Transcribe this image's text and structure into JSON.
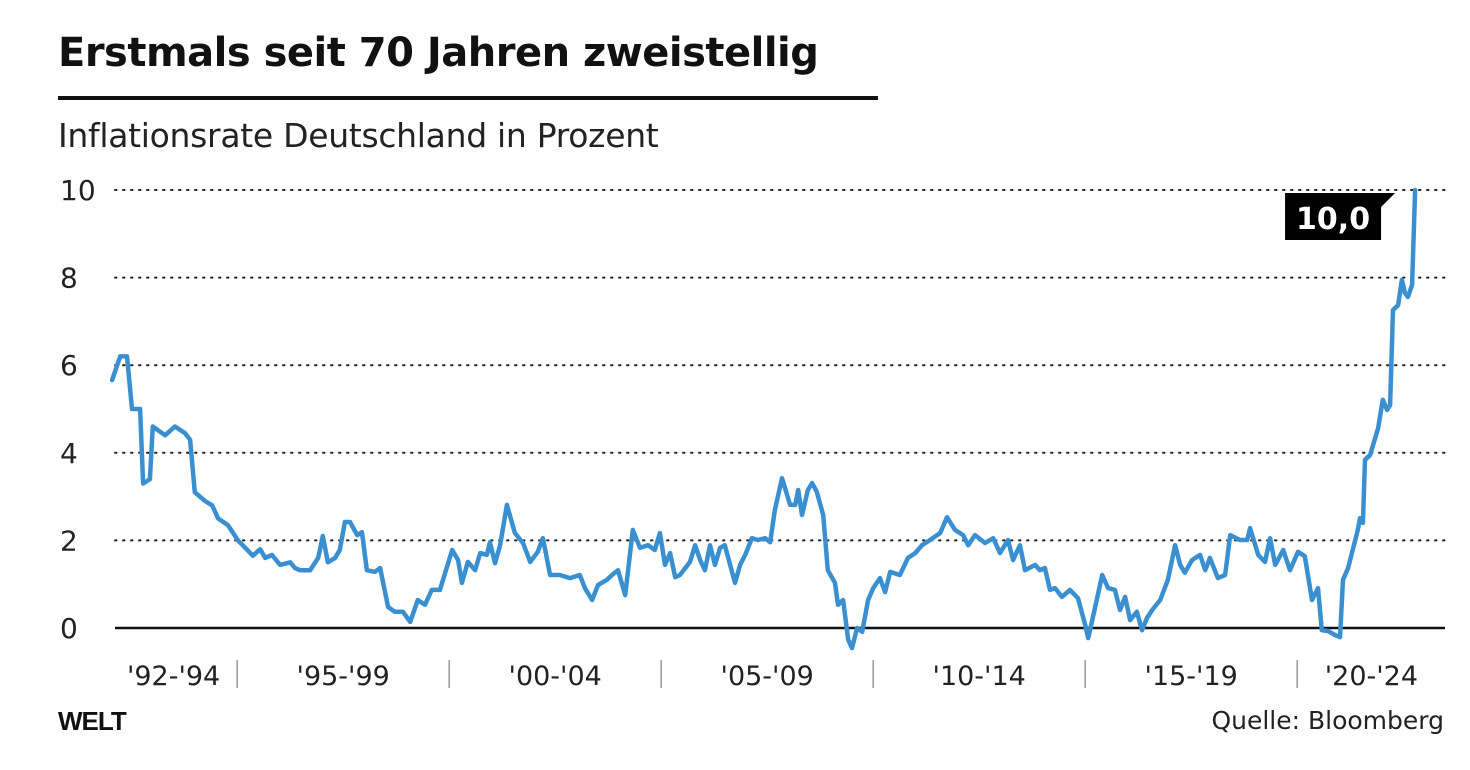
{
  "chart_data": {
    "type": "line",
    "title": "Erstmals seit 70 Jahren zweistellig",
    "subtitle": "Inflationsrate Deutschland in Prozent",
    "xlabel": "",
    "ylabel": "",
    "ylim": [
      0,
      10
    ],
    "xlim": [
      1992,
      2023.5
    ],
    "yticks": [
      "0",
      "2",
      "4",
      "6",
      "8",
      "10"
    ],
    "ytick_values": [
      0,
      2,
      4,
      6,
      8,
      10
    ],
    "grid": "horizontal dotted",
    "xticks": [
      {
        "label": "'92-'94",
        "from": 1992,
        "to": 1995
      },
      {
        "label": "'95-'99",
        "from": 1995,
        "to": 2000
      },
      {
        "label": "'00-'04",
        "from": 2000,
        "to": 2005
      },
      {
        "label": "'05-'09",
        "from": 2005,
        "to": 2010
      },
      {
        "label": "'10-'14",
        "from": 2010,
        "to": 2015
      },
      {
        "label": "'15-'19",
        "from": 2015,
        "to": 2020
      },
      {
        "label": "'20-'24",
        "from": 2020,
        "to": 2023.5
      }
    ],
    "line_color": "#3a8fd0",
    "annotation": {
      "label": "10,0",
      "x": 2022.78,
      "y": 10.0
    },
    "source": "Quelle: Bloomberg",
    "logo": "WELT",
    "series": [
      {
        "points": [
          [
            1992.05,
            5.66
          ],
          [
            1992.24,
            6.2
          ],
          [
            1992.4,
            6.2
          ],
          [
            1992.52,
            5.0
          ],
          [
            1992.71,
            5.0
          ],
          [
            1992.78,
            3.3
          ],
          [
            1992.94,
            3.4
          ],
          [
            1993.01,
            4.6
          ],
          [
            1993.3,
            4.4
          ],
          [
            1993.53,
            4.6
          ],
          [
            1993.77,
            4.45
          ],
          [
            1993.89,
            4.3
          ],
          [
            1994.0,
            3.1
          ],
          [
            1994.24,
            2.9
          ],
          [
            1994.41,
            2.8
          ],
          [
            1994.55,
            2.5
          ],
          [
            1994.78,
            2.35
          ],
          [
            1995.02,
            2.0
          ],
          [
            1995.37,
            1.65
          ],
          [
            1995.54,
            1.8
          ],
          [
            1995.66,
            1.6
          ],
          [
            1995.82,
            1.67
          ],
          [
            1996.01,
            1.44
          ],
          [
            1996.25,
            1.5
          ],
          [
            1996.36,
            1.37
          ],
          [
            1996.48,
            1.32
          ],
          [
            1996.72,
            1.32
          ],
          [
            1996.91,
            1.6
          ],
          [
            1997.02,
            2.1
          ],
          [
            1997.14,
            1.5
          ],
          [
            1997.31,
            1.6
          ],
          [
            1997.42,
            1.78
          ],
          [
            1997.54,
            2.42
          ],
          [
            1997.66,
            2.42
          ],
          [
            1997.83,
            2.12
          ],
          [
            1997.94,
            2.19
          ],
          [
            1998.06,
            1.32
          ],
          [
            1998.25,
            1.28
          ],
          [
            1998.37,
            1.37
          ],
          [
            1998.56,
            0.48
          ],
          [
            1998.72,
            0.37
          ],
          [
            1998.91,
            0.37
          ],
          [
            1999.08,
            0.14
          ],
          [
            1999.26,
            0.64
          ],
          [
            1999.43,
            0.53
          ],
          [
            1999.59,
            0.87
          ],
          [
            1999.78,
            0.87
          ],
          [
            2000.07,
            1.78
          ],
          [
            2000.21,
            1.55
          ],
          [
            2000.3,
            1.03
          ],
          [
            2000.44,
            1.51
          ],
          [
            2000.61,
            1.32
          ],
          [
            2000.73,
            1.71
          ],
          [
            2000.89,
            1.67
          ],
          [
            2000.96,
            1.96
          ],
          [
            2001.08,
            1.48
          ],
          [
            2001.2,
            1.89
          ],
          [
            2001.36,
            2.81
          ],
          [
            2001.55,
            2.17
          ],
          [
            2001.74,
            1.94
          ],
          [
            2001.91,
            1.51
          ],
          [
            2002.09,
            1.74
          ],
          [
            2002.21,
            2.05
          ],
          [
            2002.38,
            1.21
          ],
          [
            2002.61,
            1.21
          ],
          [
            2002.85,
            1.14
          ],
          [
            2003.08,
            1.21
          ],
          [
            2003.2,
            0.91
          ],
          [
            2003.37,
            0.64
          ],
          [
            2003.51,
            0.98
          ],
          [
            2003.72,
            1.1
          ],
          [
            2003.84,
            1.21
          ],
          [
            2003.98,
            1.32
          ],
          [
            2004.15,
            0.75
          ],
          [
            2004.33,
            2.24
          ],
          [
            2004.5,
            1.83
          ],
          [
            2004.69,
            1.89
          ],
          [
            2004.85,
            1.78
          ],
          [
            2004.97,
            2.17
          ],
          [
            2005.09,
            1.44
          ],
          [
            2005.21,
            1.71
          ],
          [
            2005.33,
            1.16
          ],
          [
            2005.44,
            1.21
          ],
          [
            2005.68,
            1.51
          ],
          [
            2005.8,
            1.89
          ],
          [
            2005.92,
            1.55
          ],
          [
            2006.03,
            1.32
          ],
          [
            2006.15,
            1.89
          ],
          [
            2006.27,
            1.44
          ],
          [
            2006.39,
            1.83
          ],
          [
            2006.5,
            1.89
          ],
          [
            2006.74,
            1.03
          ],
          [
            2006.86,
            1.44
          ],
          [
            2006.98,
            1.67
          ],
          [
            2007.14,
            2.05
          ],
          [
            2007.28,
            2.01
          ],
          [
            2007.45,
            2.05
          ],
          [
            2007.57,
            1.96
          ],
          [
            2007.68,
            2.69
          ],
          [
            2007.85,
            3.42
          ],
          [
            2008.04,
            2.81
          ],
          [
            2008.16,
            2.81
          ],
          [
            2008.23,
            3.15
          ],
          [
            2008.32,
            2.58
          ],
          [
            2008.46,
            3.15
          ],
          [
            2008.56,
            3.31
          ],
          [
            2008.67,
            3.11
          ],
          [
            2008.82,
            2.58
          ],
          [
            2008.93,
            1.32
          ],
          [
            2009.1,
            1.03
          ],
          [
            2009.17,
            0.53
          ],
          [
            2009.29,
            0.64
          ],
          [
            2009.41,
            -0.27
          ],
          [
            2009.5,
            -0.46
          ],
          [
            2009.62,
            0.0
          ],
          [
            2009.74,
            -0.09
          ],
          [
            2009.88,
            0.64
          ],
          [
            2010.0,
            0.91
          ],
          [
            2010.16,
            1.14
          ],
          [
            2010.28,
            0.82
          ],
          [
            2010.4,
            1.28
          ],
          [
            2010.63,
            1.21
          ],
          [
            2010.82,
            1.6
          ],
          [
            2010.99,
            1.71
          ],
          [
            2011.15,
            1.89
          ],
          [
            2011.34,
            2.01
          ],
          [
            2011.58,
            2.17
          ],
          [
            2011.74,
            2.53
          ],
          [
            2011.93,
            2.24
          ],
          [
            2012.12,
            2.12
          ],
          [
            2012.24,
            1.89
          ],
          [
            2012.4,
            2.12
          ],
          [
            2012.64,
            1.94
          ],
          [
            2012.83,
            2.05
          ],
          [
            2012.99,
            1.71
          ],
          [
            2013.18,
            2.01
          ],
          [
            2013.3,
            1.55
          ],
          [
            2013.46,
            1.89
          ],
          [
            2013.58,
            1.32
          ],
          [
            2013.82,
            1.44
          ],
          [
            2013.93,
            1.32
          ],
          [
            2014.05,
            1.37
          ],
          [
            2014.17,
            0.87
          ],
          [
            2014.29,
            0.91
          ],
          [
            2014.45,
            0.71
          ],
          [
            2014.64,
            0.87
          ],
          [
            2014.83,
            0.68
          ],
          [
            2015.0,
            0.07
          ],
          [
            2015.07,
            -0.23
          ],
          [
            2015.23,
            0.46
          ],
          [
            2015.4,
            1.21
          ],
          [
            2015.54,
            0.91
          ],
          [
            2015.7,
            0.87
          ],
          [
            2015.82,
            0.41
          ],
          [
            2015.94,
            0.71
          ],
          [
            2016.06,
            0.18
          ],
          [
            2016.22,
            0.37
          ],
          [
            2016.34,
            -0.05
          ],
          [
            2016.46,
            0.23
          ],
          [
            2016.58,
            0.41
          ],
          [
            2016.77,
            0.64
          ],
          [
            2016.95,
            1.1
          ],
          [
            2017.12,
            1.89
          ],
          [
            2017.24,
            1.44
          ],
          [
            2017.35,
            1.26
          ],
          [
            2017.52,
            1.55
          ],
          [
            2017.71,
            1.67
          ],
          [
            2017.83,
            1.32
          ],
          [
            2017.94,
            1.6
          ],
          [
            2018.13,
            1.14
          ],
          [
            2018.3,
            1.21
          ],
          [
            2018.42,
            2.12
          ],
          [
            2018.65,
            2.01
          ],
          [
            2018.82,
            2.01
          ],
          [
            2018.89,
            2.28
          ],
          [
            2019.08,
            1.67
          ],
          [
            2019.24,
            1.51
          ],
          [
            2019.36,
            2.05
          ],
          [
            2019.48,
            1.44
          ],
          [
            2019.67,
            1.78
          ],
          [
            2019.83,
            1.32
          ],
          [
            2020.02,
            1.74
          ],
          [
            2020.18,
            1.64
          ],
          [
            2020.35,
            0.64
          ],
          [
            2020.49,
            0.91
          ],
          [
            2020.58,
            -0.05
          ],
          [
            2020.73,
            -0.07
          ],
          [
            2020.89,
            -0.16
          ],
          [
            2021.01,
            -0.21
          ],
          [
            2021.08,
            1.1
          ],
          [
            2021.2,
            1.37
          ],
          [
            2021.43,
            2.24
          ],
          [
            2021.48,
            2.51
          ],
          [
            2021.55,
            2.4
          ],
          [
            2021.6,
            3.84
          ],
          [
            2021.72,
            3.95
          ],
          [
            2021.91,
            4.57
          ],
          [
            2022.02,
            5.21
          ],
          [
            2022.12,
            4.98
          ],
          [
            2022.19,
            5.09
          ],
          [
            2022.26,
            7.26
          ],
          [
            2022.38,
            7.37
          ],
          [
            2022.47,
            7.95
          ],
          [
            2022.54,
            7.65
          ],
          [
            2022.61,
            7.56
          ],
          [
            2022.71,
            7.83
          ],
          [
            2022.78,
            10.0
          ]
        ]
      }
    ]
  }
}
